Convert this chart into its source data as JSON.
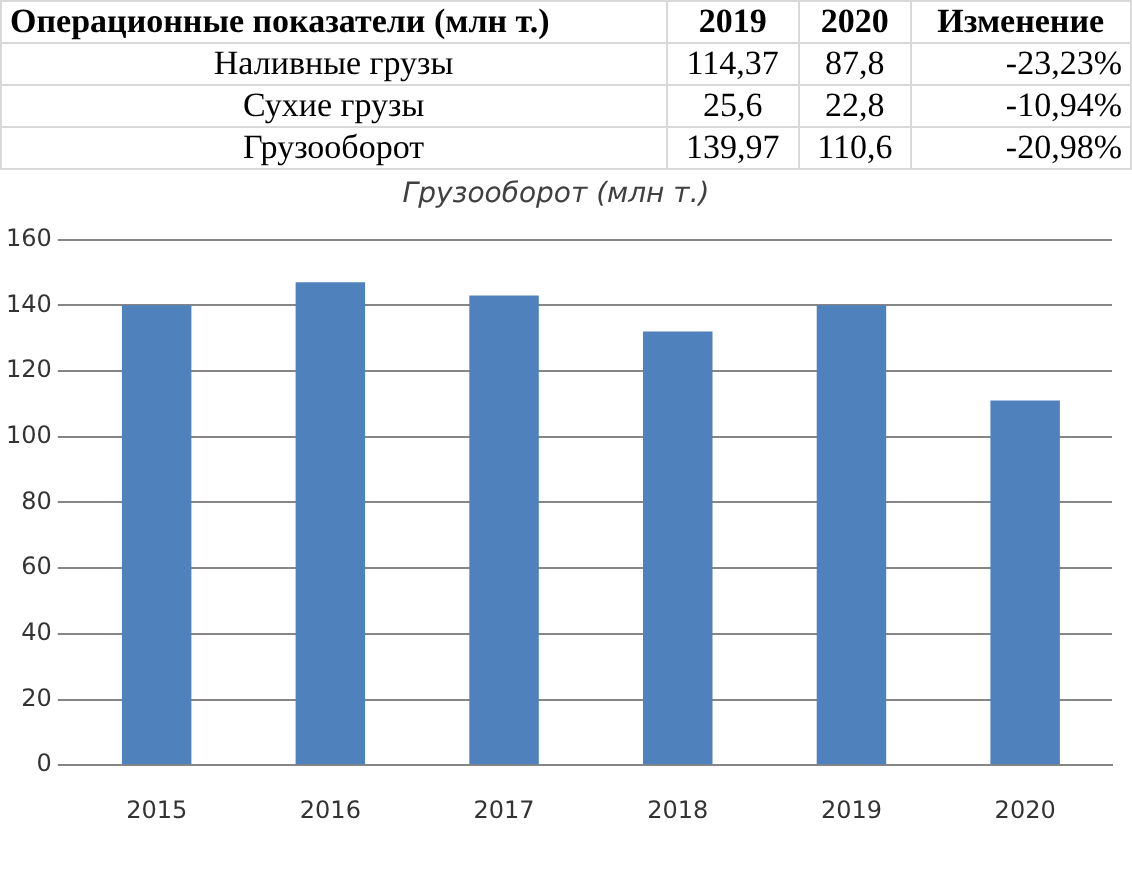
{
  "chart_data": [
    {
      "type": "other",
      "title": "Операционные показатели (млн т.)",
      "categories": [
        "Наливные грузы",
        "Сухие грузы",
        "Грузооборот"
      ],
      "data_labels": true,
      "series": [
        {
          "name": "2019",
          "values": [
            114.37,
            25.6,
            139.97
          ],
          "value_labels": [
            "114,37",
            "25,6",
            "139,97"
          ]
        },
        {
          "name": "2020",
          "values": [
            87.8,
            22.8,
            110.6
          ],
          "value_labels": [
            "87,8",
            "22,8",
            "110,6"
          ]
        },
        {
          "name": "Изменение",
          "values": [
            -23.23,
            -10.94,
            -20.98
          ],
          "value_labels": [
            "-23,23%",
            "-10,94%",
            "-20,98%"
          ]
        }
      ]
    },
    {
      "type": "bar",
      "title": "Грузооборот (млн т.)",
      "categories": [
        "2015",
        "2016",
        "2017",
        "2018",
        "2019",
        "2020"
      ],
      "values": [
        140,
        147,
        143,
        132,
        140,
        111
      ],
      "color": "#4f81bd",
      "ylim": [
        0,
        160
      ],
      "yticks": [
        0,
        20,
        40,
        60,
        80,
        100,
        120,
        140,
        160
      ],
      "grid": "y",
      "legend": false
    }
  ]
}
